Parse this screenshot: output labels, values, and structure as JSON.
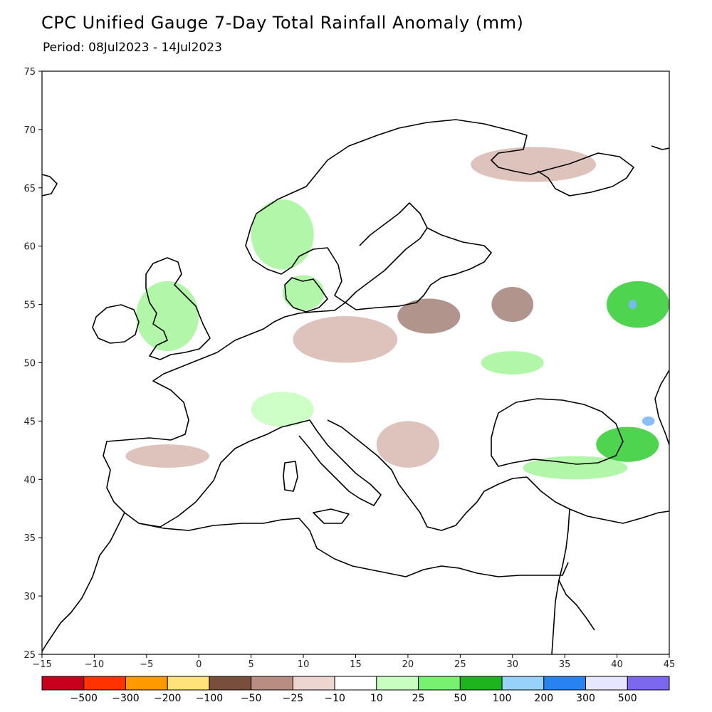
{
  "header": {
    "title": "CPC Unified Gauge 7-Day Total Rainfall Anomaly (mm)",
    "period": "Period: 08Jul2023 - 14Jul2023"
  },
  "map": {
    "lon_range": [
      -15,
      45
    ],
    "lat_range": [
      25,
      75
    ],
    "lon_ticks": [
      "−15",
      "−10",
      "−5",
      "0",
      "5",
      "10",
      "15",
      "20",
      "25",
      "30",
      "35",
      "40",
      "45"
    ],
    "lat_ticks": [
      "25",
      "30",
      "35",
      "40",
      "45",
      "50",
      "55",
      "60",
      "65",
      "70",
      "75"
    ],
    "land_color": "#ffffff",
    "coast_color": "#000000",
    "regions": [
      {
        "name": "british-isles-wet",
        "category": "25",
        "center": [
          -3,
          54
        ],
        "radius": [
          3,
          3
        ]
      },
      {
        "name": "norway-wet",
        "category": "25",
        "center": [
          8,
          61
        ],
        "radius": [
          3,
          3
        ]
      },
      {
        "name": "denmark-wet",
        "category": "25",
        "center": [
          10,
          56
        ],
        "radius": [
          2,
          1.5
        ]
      },
      {
        "name": "alps-wet",
        "category": "10",
        "center": [
          8,
          46
        ],
        "radius": [
          3,
          1.5
        ]
      },
      {
        "name": "central-europe-dry",
        "category": "-25",
        "center": [
          14,
          52
        ],
        "radius": [
          5,
          2
        ]
      },
      {
        "name": "poland-dry",
        "category": "-50",
        "center": [
          22,
          54
        ],
        "radius": [
          3,
          1.5
        ]
      },
      {
        "name": "belarus-dry",
        "category": "-50",
        "center": [
          30,
          55
        ],
        "radius": [
          2,
          1.5
        ]
      },
      {
        "name": "russia-north-dry",
        "category": "-25",
        "center": [
          32,
          67
        ],
        "radius": [
          6,
          1.5
        ]
      },
      {
        "name": "iberia-dry",
        "category": "-25",
        "center": [
          -3,
          42
        ],
        "radius": [
          4,
          1
        ]
      },
      {
        "name": "balkans-dry",
        "category": "-25",
        "center": [
          20,
          43
        ],
        "radius": [
          3,
          2
        ]
      },
      {
        "name": "russia-east-wet",
        "category": "50",
        "center": [
          42,
          55
        ],
        "radius": [
          3,
          2
        ]
      },
      {
        "name": "caucasus-wet",
        "category": "50",
        "center": [
          41,
          43
        ],
        "radius": [
          3,
          1.5
        ]
      },
      {
        "name": "turkey-north-wet",
        "category": "25",
        "center": [
          36,
          41
        ],
        "radius": [
          5,
          1
        ]
      },
      {
        "name": "ukraine-wet",
        "category": "25",
        "center": [
          30,
          50
        ],
        "radius": [
          3,
          1
        ]
      },
      {
        "name": "kuban-blue",
        "category": "200",
        "center": [
          43,
          45
        ],
        "radius": [
          0.6,
          0.4
        ]
      },
      {
        "name": "moscow-blue",
        "category": "200",
        "center": [
          41.5,
          55
        ],
        "radius": [
          0.4,
          0.4
        ]
      }
    ]
  },
  "legend": {
    "labels": [
      "−500",
      "−300",
      "−200",
      "−100",
      "−50",
      "−25",
      "−10",
      "10",
      "25",
      "50",
      "100",
      "200",
      "300",
      "500"
    ],
    "colors": [
      "#c8001e",
      "#ff3300",
      "#ff9900",
      "#ffe27a",
      "#7a4e3c",
      "#b98d82",
      "#ecd6cf",
      "#ffffff",
      "#c8ffc0",
      "#78f070",
      "#1eb41e",
      "#96d2fa",
      "#2882f0",
      "#e6e6ff",
      "#7b68ee"
    ]
  }
}
